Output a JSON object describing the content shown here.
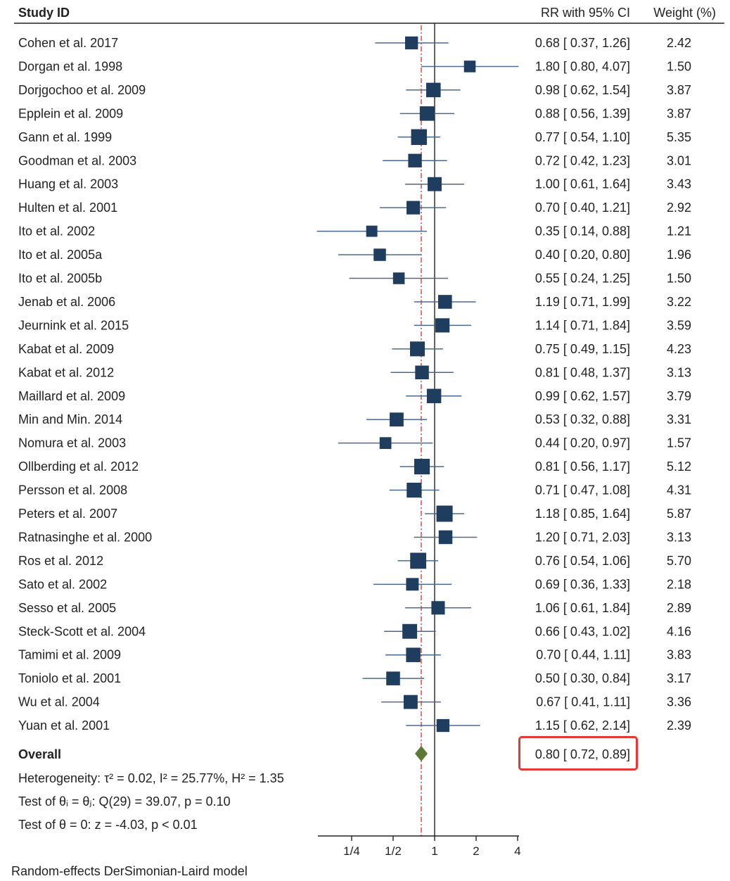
{
  "chart_data": {
    "type": "forest",
    "headers": {
      "study": "Study ID",
      "effect": "RR with 95% CI",
      "weight": "Weight (%)"
    },
    "x_scale": "log2",
    "xlim": [
      0.2,
      4
    ],
    "x_ticks": [
      {
        "value": 0.25,
        "label": "1/4"
      },
      {
        "value": 0.5,
        "label": "1/2"
      },
      {
        "value": 1,
        "label": "1"
      },
      {
        "value": 2,
        "label": "2"
      },
      {
        "value": 4,
        "label": "4"
      }
    ],
    "null_line": 1,
    "pooled_line": 0.8,
    "colors": {
      "marker": "#1f3d5e",
      "ci_line": "#4a6a8d",
      "diamond": "#5b7a35",
      "null_line": "#222222",
      "pooled_line": "#e53935",
      "highlight": "#e53935"
    },
    "studies": [
      {
        "study": "Cohen et al. 2017",
        "rr": 0.68,
        "lo": 0.37,
        "hi": 1.26,
        "ci_text": "0.68 [ 0.37,  1.26]",
        "weight": "2.42"
      },
      {
        "study": "Dorgan et al. 1998",
        "rr": 1.8,
        "lo": 0.8,
        "hi": 4.07,
        "ci_text": "1.80 [ 0.80,  4.07]",
        "weight": "1.50"
      },
      {
        "study": "Dorjgochoo et al. 2009",
        "rr": 0.98,
        "lo": 0.62,
        "hi": 1.54,
        "ci_text": "0.98 [ 0.62,  1.54]",
        "weight": "3.87"
      },
      {
        "study": "Epplein et al. 2009",
        "rr": 0.88,
        "lo": 0.56,
        "hi": 1.39,
        "ci_text": "0.88 [ 0.56,  1.39]",
        "weight": "3.87"
      },
      {
        "study": "Gann et al. 1999",
        "rr": 0.77,
        "lo": 0.54,
        "hi": 1.1,
        "ci_text": "0.77 [ 0.54,  1.10]",
        "weight": "5.35"
      },
      {
        "study": "Goodman et al. 2003",
        "rr": 0.72,
        "lo": 0.42,
        "hi": 1.23,
        "ci_text": "0.72 [ 0.42,  1.23]",
        "weight": "3.01"
      },
      {
        "study": "Huang et al. 2003",
        "rr": 1.0,
        "lo": 0.61,
        "hi": 1.64,
        "ci_text": "1.00 [ 0.61,  1.64]",
        "weight": "3.43"
      },
      {
        "study": "Hulten et al. 2001",
        "rr": 0.7,
        "lo": 0.4,
        "hi": 1.21,
        "ci_text": "0.70 [ 0.40,  1.21]",
        "weight": "2.92"
      },
      {
        "study": "Ito et al. 2002",
        "rr": 0.35,
        "lo": 0.14,
        "hi": 0.88,
        "ci_text": "0.35 [ 0.14,  0.88]",
        "weight": "1.21"
      },
      {
        "study": "Ito et al. 2005a",
        "rr": 0.4,
        "lo": 0.2,
        "hi": 0.8,
        "ci_text": "0.40 [ 0.20,  0.80]",
        "weight": "1.96"
      },
      {
        "study": "Ito et al. 2005b",
        "rr": 0.55,
        "lo": 0.24,
        "hi": 1.25,
        "ci_text": "0.55 [ 0.24,  1.25]",
        "weight": "1.50"
      },
      {
        "study": "Jenab et al. 2006",
        "rr": 1.19,
        "lo": 0.71,
        "hi": 1.99,
        "ci_text": "1.19 [ 0.71,  1.99]",
        "weight": "3.22"
      },
      {
        "study": "Jeurnink et al. 2015",
        "rr": 1.14,
        "lo": 0.71,
        "hi": 1.84,
        "ci_text": "1.14 [ 0.71,  1.84]",
        "weight": "3.59"
      },
      {
        "study": "Kabat et al. 2009",
        "rr": 0.75,
        "lo": 0.49,
        "hi": 1.15,
        "ci_text": "0.75 [ 0.49,  1.15]",
        "weight": "4.23"
      },
      {
        "study": "Kabat et al. 2012",
        "rr": 0.81,
        "lo": 0.48,
        "hi": 1.37,
        "ci_text": "0.81 [ 0.48,  1.37]",
        "weight": "3.13"
      },
      {
        "study": "Maillard et al. 2009",
        "rr": 0.99,
        "lo": 0.62,
        "hi": 1.57,
        "ci_text": "0.99 [ 0.62,  1.57]",
        "weight": "3.79"
      },
      {
        "study": "Min and Min. 2014",
        "rr": 0.53,
        "lo": 0.32,
        "hi": 0.88,
        "ci_text": "0.53 [ 0.32,  0.88]",
        "weight": "3.31"
      },
      {
        "study": "Nomura et al. 2003",
        "rr": 0.44,
        "lo": 0.2,
        "hi": 0.97,
        "ci_text": "0.44 [ 0.20,  0.97]",
        "weight": "1.57"
      },
      {
        "study": "Ollberding et al. 2012",
        "rr": 0.81,
        "lo": 0.56,
        "hi": 1.17,
        "ci_text": "0.81 [ 0.56,  1.17]",
        "weight": "5.12"
      },
      {
        "study": "Persson et al. 2008",
        "rr": 0.71,
        "lo": 0.47,
        "hi": 1.08,
        "ci_text": "0.71 [ 0.47,  1.08]",
        "weight": "4.31"
      },
      {
        "study": "Peters et al. 2007",
        "rr": 1.18,
        "lo": 0.85,
        "hi": 1.64,
        "ci_text": "1.18 [ 0.85,  1.64]",
        "weight": "5.87"
      },
      {
        "study": "Ratnasinghe et al. 2000",
        "rr": 1.2,
        "lo": 0.71,
        "hi": 2.03,
        "ci_text": "1.20 [ 0.71,  2.03]",
        "weight": "3.13"
      },
      {
        "study": "Ros et al. 2012",
        "rr": 0.76,
        "lo": 0.54,
        "hi": 1.06,
        "ci_text": "0.76 [ 0.54,  1.06]",
        "weight": "5.70"
      },
      {
        "study": "Sato et al. 2002",
        "rr": 0.69,
        "lo": 0.36,
        "hi": 1.33,
        "ci_text": "0.69 [ 0.36,  1.33]",
        "weight": "2.18"
      },
      {
        "study": "Sesso et al. 2005",
        "rr": 1.06,
        "lo": 0.61,
        "hi": 1.84,
        "ci_text": "1.06 [ 0.61,  1.84]",
        "weight": "2.89"
      },
      {
        "study": "Steck-Scott et al. 2004",
        "rr": 0.66,
        "lo": 0.43,
        "hi": 1.02,
        "ci_text": "0.66 [ 0.43,  1.02]",
        "weight": "4.16"
      },
      {
        "study": "Tamimi et al. 2009",
        "rr": 0.7,
        "lo": 0.44,
        "hi": 1.11,
        "ci_text": "0.70 [ 0.44,  1.11]",
        "weight": "3.83"
      },
      {
        "study": "Toniolo et al. 2001",
        "rr": 0.5,
        "lo": 0.3,
        "hi": 0.84,
        "ci_text": "0.50 [ 0.30,  0.84]",
        "weight": "3.17"
      },
      {
        "study": "Wu et al. 2004",
        "rr": 0.67,
        "lo": 0.41,
        "hi": 1.11,
        "ci_text": "0.67 [ 0.41,  1.11]",
        "weight": "3.36"
      },
      {
        "study": "Yuan et al. 2001",
        "rr": 1.15,
        "lo": 0.62,
        "hi": 2.14,
        "ci_text": "1.15 [ 0.62,  2.14]",
        "weight": "2.39"
      }
    ],
    "overall": {
      "label": "Overall",
      "rr": 0.8,
      "lo": 0.72,
      "hi": 0.89,
      "ci_text": "0.80 [ 0.72,  0.89]"
    },
    "stats": [
      "Heterogeneity: τ² = 0.02, I² = 25.77%, H² = 1.35",
      "Test of θᵢ = θⱼ: Q(29) = 39.07, p = 0.10",
      "Test of θ = 0: z = -4.03, p < 0.01"
    ],
    "footnote": "Random-effects DerSimonian-Laird model"
  }
}
